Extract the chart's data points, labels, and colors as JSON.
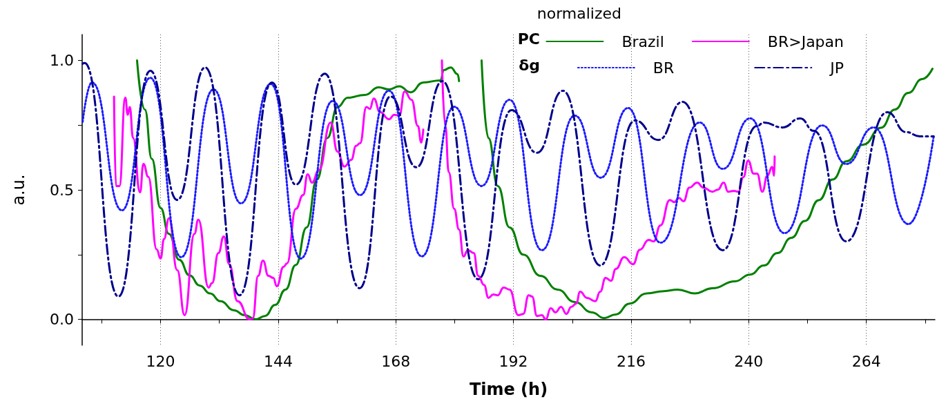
{
  "chart_data": {
    "type": "line",
    "xlabel": "Time (h)",
    "ylabel": "a.u.",
    "legend_title": "normalized",
    "annotations": [
      "PC",
      "δg"
    ],
    "legend": "top right",
    "grid": "x",
    "xlim": [
      104,
      278
    ],
    "ylim": [
      -0.1,
      1.1
    ],
    "xticks": [
      {
        "value": 108,
        "label": null
      },
      120,
      {
        "value": 132,
        "label": null
      },
      144,
      {
        "value": 156,
        "label": null
      },
      168,
      {
        "value": 180,
        "label": null
      },
      192,
      {
        "value": 204,
        "label": null
      },
      216,
      {
        "value": 228,
        "label": null
      },
      240,
      {
        "value": 252,
        "label": null
      },
      264,
      {
        "value": 276,
        "label": null
      }
    ],
    "yticks": [
      {
        "value": 0,
        "label": "0.0"
      },
      {
        "value": 0.25,
        "label": null
      },
      {
        "value": 0.5,
        "label": "0.5"
      },
      {
        "value": 0.75,
        "label": null
      },
      {
        "value": 1,
        "label": "1.0"
      }
    ],
    "series": [
      {
        "name": "Brazil",
        "color": "#008000",
        "line_style": "solid",
        "x": [
          115.2,
          116.8,
          118.2,
          120,
          121.7,
          123.8,
          125.9,
          128,
          130.1,
          132.2,
          135,
          137.1,
          139.5,
          141.3,
          143.4,
          145.5,
          147.6,
          149.8,
          151.9,
          154,
          156.1,
          158.2,
          161.7,
          164.5,
          166.6,
          168.7,
          171,
          173.6,
          177.1,
          177.8,
          179.2,
          180.6,
          180.9,
          183,
          185.5,
          186.9,
          188.8,
          191.2,
          194,
          197.5,
          201,
          204.5,
          208,
          210.5,
          212.9,
          215.7,
          219.2,
          222.7,
          225.5,
          229,
          232.6,
          237.2,
          240.3,
          243.1,
          245.9,
          248.7,
          251.5,
          254.3,
          257.1,
          259.9,
          263.4,
          267,
          269.8,
          272.6,
          275.4,
          277.5
        ],
        "values": [
          1.0,
          0.81,
          0.62,
          0.43,
          0.33,
          0.23,
          0.17,
          0.13,
          0.1,
          0.07,
          0.035,
          0.016,
          0.0,
          0.013,
          0.056,
          0.115,
          0.21,
          0.355,
          0.54,
          0.7,
          0.82,
          0.856,
          0.867,
          0.896,
          0.888,
          0.9,
          0.877,
          0.915,
          0.923,
          0.963,
          0.973,
          0.947,
          0.92,
          null,
          1.0,
          0.7,
          0.515,
          0.355,
          0.25,
          0.168,
          0.115,
          0.067,
          0.027,
          0.005,
          0.019,
          0.061,
          0.1,
          0.109,
          0.115,
          0.1,
          0.12,
          0.147,
          0.173,
          0.208,
          0.256,
          0.315,
          0.38,
          0.46,
          0.54,
          0.61,
          0.675,
          0.74,
          0.81,
          0.875,
          0.928,
          0.968
        ]
      },
      {
        "name": "BR>Japan",
        "color": "#ff00ff",
        "line_style": "solid",
        "x": [
          110.5,
          110.9,
          111.6,
          112.8,
          113.3,
          113.7,
          114.4,
          115.8,
          116.5,
          117.5,
          119.2,
          120,
          120.7,
          121.7,
          123.4,
          124.9,
          126.9,
          127.7,
          129.8,
          130.5,
          131.8,
          132.9,
          134,
          135.7,
          138.2,
          138.8,
          139.9,
          140.9,
          142,
          143,
          143.7,
          145.1,
          145.8,
          147.6,
          149.1,
          150,
          150.9,
          152.3,
          154.7,
          156.1,
          157.5,
          158.9,
          159.9,
          160.7,
          162,
          162.7,
          163.5,
          164.8,
          166.6,
          167.7,
          168.7,
          169.8,
          171.2,
          172.5,
          173.2,
          173.6,
          175.5,
          177.4,
          178.1,
          178.8,
          179.9,
          180.9,
          181.8,
          182.7,
          183.9,
          184.8,
          186,
          186.9,
          187.9,
          188.8,
          190,
          191.2,
          193,
          194,
          195.1,
          195.8,
          196.8,
          197.8,
          198.6,
          199.6,
          200.6,
          201.7,
          202.8,
          203.8,
          204.8,
          205.6,
          207,
          208.7,
          209.7,
          210.8,
          211.9,
          212.9,
          214.6,
          216.4,
          217.8,
          219.6,
          220.6,
          222,
          223.9,
          224.8,
          225.8,
          226.7,
          227.9,
          229.5,
          230.7,
          232.6,
          233.7,
          234.9,
          235.8,
          237,
          237.9,
          238.9,
          239.9,
          241,
          241.7,
          242.8,
          243.8,
          244.8,
          245.2,
          245.3
        ],
        "values": [
          0.86,
          0.515,
          0.515,
          0.856,
          0.79,
          0.82,
          0.7,
          0.49,
          0.6,
          0.55,
          0.27,
          0.235,
          0.31,
          0.39,
          0.19,
          0.016,
          0.33,
          0.385,
          0.123,
          0.14,
          0.256,
          0.32,
          0.213,
          0.07,
          0.0,
          0.003,
          0.168,
          0.227,
          0.168,
          0.16,
          0.128,
          0.203,
          0.216,
          0.427,
          0.48,
          0.56,
          0.528,
          0.576,
          0.76,
          0.648,
          0.59,
          0.616,
          0.67,
          0.68,
          0.82,
          0.813,
          0.853,
          0.8,
          0.773,
          0.79,
          0.787,
          0.88,
          0.848,
          0.747,
          0.683,
          0.733,
          null,
          1.0,
          0.747,
          0.568,
          0.427,
          0.347,
          0.243,
          0.267,
          0.256,
          0.168,
          0.133,
          0.083,
          0.096,
          0.093,
          0.123,
          0.115,
          0.016,
          0.021,
          0.093,
          0.088,
          0.013,
          0.016,
          0.0,
          0.043,
          0.027,
          0.048,
          0.021,
          0.048,
          0.061,
          0.107,
          0.083,
          0.07,
          0.107,
          0.16,
          0.149,
          0.195,
          0.24,
          0.213,
          0.269,
          0.307,
          0.301,
          0.363,
          0.461,
          0.453,
          0.469,
          0.456,
          0.509,
          0.528,
          0.509,
          0.493,
          0.501,
          0.528,
          0.493,
          0.496,
          0.493,
          0.549,
          0.613,
          0.563,
          0.563,
          0.493,
          0.555,
          0.589,
          0.555,
          0.629
        ]
      },
      {
        "name": "BR",
        "color": "#1a1aff",
        "line_style": "dotted",
        "x": [
          104.1,
          106,
          112.1,
          117.9,
          124.2,
          130.8,
          136.4,
          142.5,
          148.6,
          155.1,
          160.7,
          166.6,
          173.3,
          179.9,
          185.5,
          191.2,
          197.8,
          204.5,
          209.8,
          215.4,
          222,
          230,
          234.7,
          240.3,
          247.3,
          255,
          259.9,
          265.5,
          272.6,
          277.75
        ],
        "values": [
          0.763,
          0.915,
          0.421,
          0.933,
          0.24,
          0.888,
          0.448,
          0.909,
          0.235,
          0.843,
          0.48,
          0.883,
          0.243,
          0.821,
          0.515,
          0.848,
          0.267,
          0.787,
          0.547,
          0.816,
          0.296,
          0.76,
          0.581,
          0.776,
          0.333,
          0.749,
          0.6,
          0.741,
          0.368,
          0.707
        ]
      },
      {
        "name": "JP",
        "color": "#00008b",
        "line_style": "dashed",
        "x": [
          104.1,
          104.5,
          111.4,
          117.9,
          123.4,
          129.1,
          136.1,
          142.7,
          147.6,
          153.5,
          160.6,
          166.9,
          172.2,
          177.5,
          184.8,
          191.6,
          196.8,
          202.1,
          209.7,
          216.8,
          221.6,
          226.5,
          234.7,
          241.7,
          243.1,
          246.9,
          250.5,
          253.3,
          259.9,
          268.3,
          272.1,
          274.9,
          277.75
        ],
        "values": [
          0.987,
          0.99,
          0.088,
          0.96,
          0.461,
          0.973,
          0.093,
          0.915,
          0.52,
          0.949,
          0.12,
          0.861,
          0.587,
          0.92,
          0.155,
          0.808,
          0.643,
          0.883,
          0.208,
          0.768,
          0.693,
          0.84,
          0.267,
          0.747,
          0.76,
          0.741,
          0.776,
          0.728,
          0.301,
          0.8,
          0.723,
          0.707,
          0.707
        ]
      }
    ]
  }
}
